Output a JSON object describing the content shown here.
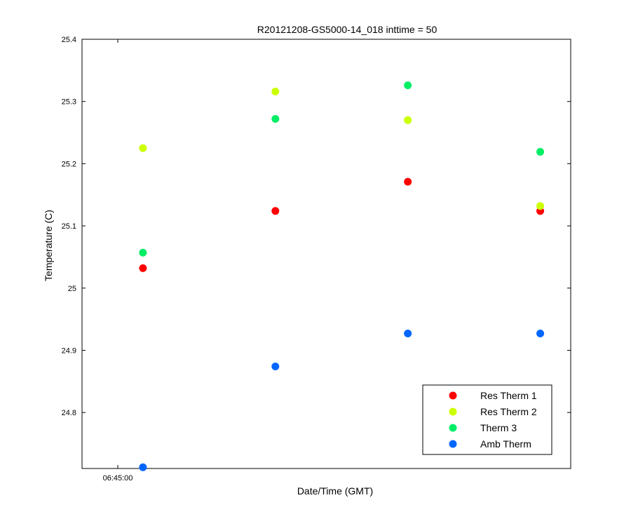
{
  "chart_data": {
    "type": "scatter",
    "title": "R20121208-GS5000-14_018 inttime = 50",
    "xlabel": "Date/Time (GMT)",
    "ylabel": "Temperature (C)",
    "ylim": [
      24.71,
      25.4
    ],
    "y_ticks": [
      24.8,
      24.9,
      25,
      25.1,
      25.2,
      25.3,
      25.4
    ],
    "y_tick_labels": [
      "24.8",
      "24.9",
      "25",
      "25.1",
      "25.2",
      "25.3",
      "25.4"
    ],
    "x": [
      1,
      2,
      3,
      4
    ],
    "xlim": [
      0.54,
      4.23
    ],
    "x_ticks": [
      0.81
    ],
    "x_tick_labels": [
      "06:45:00"
    ],
    "grid": false,
    "legend_position": "bottom-right",
    "series": [
      {
        "name": "Res Therm 1",
        "color": "#ff0000",
        "values": [
          25.032,
          25.124,
          25.171,
          25.124
        ]
      },
      {
        "name": "Res Therm 2",
        "color": "#ccff00",
        "values": [
          25.225,
          25.316,
          25.27,
          25.132
        ]
      },
      {
        "name": "Therm 3",
        "color": "#00ee66",
        "values": [
          25.057,
          25.272,
          25.326,
          25.219
        ]
      },
      {
        "name": "Amb Therm",
        "color": "#0066ff",
        "values": [
          24.712,
          24.874,
          24.927,
          24.927
        ]
      }
    ]
  }
}
